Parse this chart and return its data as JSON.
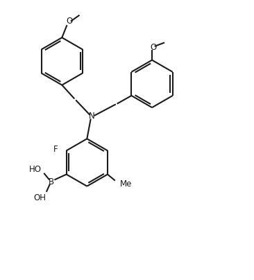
{
  "bg_color": "#ffffff",
  "line_color": "#1a1a1a",
  "line_width": 1.5,
  "font_size": 8.5,
  "figsize": [
    3.66,
    4.04
  ],
  "dpi": 100,
  "xlim": [
    0,
    100
  ],
  "ylim": [
    0,
    110
  ]
}
